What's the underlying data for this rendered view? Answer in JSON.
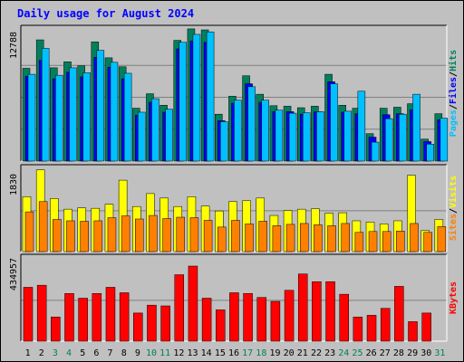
{
  "title": "Daily usage for August 2024",
  "colors": {
    "background": "#c0c0c0",
    "hits": "#00805c",
    "files": "#0000ff",
    "pages": "#00c0ff",
    "visits": "#ffff00",
    "sites": "#ff8000",
    "kbytes": "#ff0000",
    "title": "#0000ff",
    "weekend_day": "#00805c",
    "weekday": "#000000"
  },
  "chart_data": [
    {
      "type": "bar",
      "name": "hits-files-pages",
      "ylabel_max": "12788",
      "ymax": 12788,
      "legend": [
        {
          "label": "Pages",
          "color": "#00c0ff"
        },
        {
          "label": "Files",
          "color": "#0000ff"
        },
        {
          "label": "Hits",
          "color": "#00805c"
        }
      ],
      "legend_separator": "/",
      "series": [
        {
          "name": "Hits",
          "values": [
            9300,
            12150,
            9350,
            9950,
            9550,
            11950,
            10350,
            9450,
            5300,
            6750,
            5600,
            12100,
            13250,
            13150,
            4700,
            6500,
            8550,
            6700,
            5550,
            5500,
            5350,
            5500,
            8700,
            5600,
            5300,
            2750,
            5300,
            5400,
            5750,
            2200,
            4750
          ]
        },
        {
          "name": "Files",
          "values": [
            8500,
            10100,
            8250,
            8900,
            8450,
            10400,
            9400,
            8250,
            4600,
            5900,
            4900,
            11250,
            12050,
            11900,
            4050,
            5800,
            7750,
            5900,
            4950,
            4950,
            4700,
            4950,
            7950,
            4900,
            4750,
            2400,
            4650,
            4750,
            5150,
            1950,
            4150
          ]
        },
        {
          "name": "Pages",
          "values": [
            8700,
            11300,
            8600,
            9350,
            8850,
            11100,
            9900,
            8800,
            4900,
            6250,
            5200,
            11900,
            12700,
            12950,
            3950,
            6100,
            7450,
            6100,
            5100,
            4800,
            4850,
            4950,
            7750,
            5000,
            7000,
            1900,
            4250,
            4700,
            6700,
            1700,
            4300
          ]
        }
      ]
    },
    {
      "type": "bar",
      "name": "visits-sites",
      "ylabel_max": "1830",
      "ymax": 1830,
      "legend": [
        {
          "label": "Sites",
          "color": "#ff8000"
        },
        {
          "label": "Visits",
          "color": "#ffff00"
        }
      ],
      "legend_separator": "/",
      "series": [
        {
          "name": "Visits",
          "values": [
            1230,
            1830,
            1190,
            950,
            980,
            970,
            1060,
            1600,
            1010,
            1300,
            1200,
            1010,
            1230,
            1020,
            910,
            1120,
            1140,
            1200,
            810,
            920,
            950,
            960,
            860,
            870,
            690,
            660,
            620,
            690,
            1710,
            470,
            720
          ]
        },
        {
          "name": "Sites",
          "values": [
            890,
            1120,
            720,
            690,
            680,
            690,
            760,
            800,
            730,
            810,
            740,
            770,
            760,
            700,
            550,
            700,
            620,
            680,
            580,
            610,
            630,
            600,
            580,
            630,
            430,
            450,
            450,
            460,
            630,
            430,
            560
          ]
        }
      ]
    },
    {
      "type": "bar",
      "name": "kbytes",
      "ylabel_max": "434957",
      "ymax": 434957,
      "legend": [
        {
          "label": "KBytes",
          "color": "#ff0000"
        }
      ],
      "legend_separator": "",
      "series": [
        {
          "name": "KBytes",
          "values": [
            287000,
            298000,
            129000,
            254000,
            229000,
            254000,
            287000,
            258000,
            150000,
            192000,
            188000,
            354000,
            400000,
            229000,
            167000,
            258000,
            254000,
            233000,
            212000,
            271000,
            358000,
            317000,
            317000,
            250000,
            129000,
            138000,
            175000,
            292000,
            104000,
            150000,
            0
          ]
        }
      ]
    }
  ],
  "x_axis": {
    "days": [
      "1",
      "2",
      "3",
      "4",
      "5",
      "6",
      "7",
      "8",
      "9",
      "10",
      "11",
      "12",
      "13",
      "14",
      "15",
      "16",
      "17",
      "18",
      "19",
      "20",
      "21",
      "22",
      "23",
      "24",
      "25",
      "26",
      "27",
      "28",
      "29",
      "30",
      "31"
    ],
    "weekend_days": [
      "3",
      "4",
      "10",
      "11",
      "17",
      "18",
      "24",
      "25",
      "31"
    ]
  }
}
